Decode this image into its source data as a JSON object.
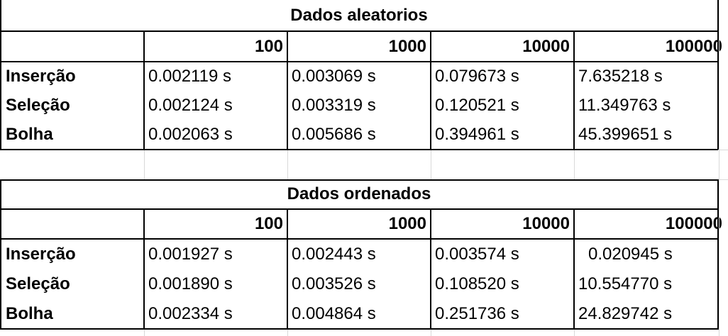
{
  "tables": [
    {
      "title": "Dados aleatorios",
      "columns": [
        "100",
        "1000",
        "10000",
        "100000"
      ],
      "rows": [
        {
          "label": "Inserção",
          "values": [
            "0.002119 s",
            "0.003069 s",
            "0.079673 s",
            "7.635218 s"
          ]
        },
        {
          "label": "Seleção",
          "values": [
            "0.002124 s",
            "0.003319 s",
            "0.120521 s",
            "11.349763 s"
          ]
        },
        {
          "label": "Bolha",
          "values": [
            "0.002063 s",
            "0.005686 s",
            "0.394961 s",
            "45.399651 s"
          ]
        }
      ]
    },
    {
      "title": "Dados ordenados",
      "columns": [
        "100",
        "1000",
        "10000",
        "100000"
      ],
      "rows": [
        {
          "label": "Inserção",
          "values": [
            "0.001927 s",
            "0.002443 s",
            "0.003574 s",
            "0.020945 s"
          ]
        },
        {
          "label": "Seleção",
          "values": [
            "0.001890 s",
            "0.003526 s",
            "0.108520 s",
            "10.554770 s"
          ]
        },
        {
          "label": "Bolha",
          "values": [
            "0.002334 s",
            "0.004864 s",
            "0.251736 s",
            "24.829742 s"
          ]
        }
      ]
    }
  ]
}
